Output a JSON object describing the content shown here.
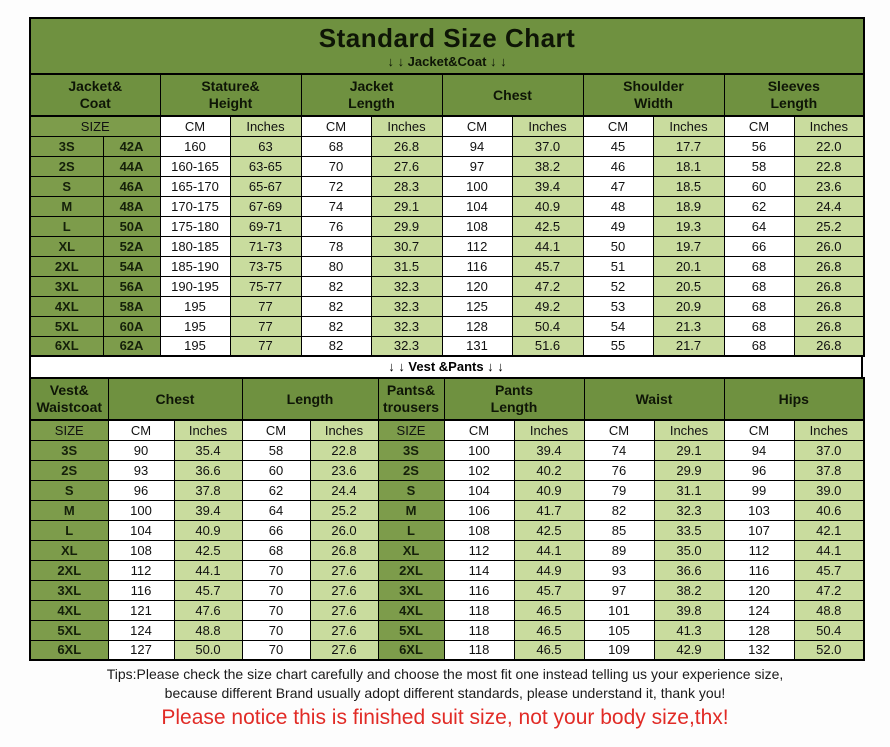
{
  "title": "Standard Size Chart",
  "jacket_section_label": "↓ ↓  Jacket&Coat ↓ ↓",
  "vest_section_label": "↓ ↓  Vest &Pants ↓ ↓",
  "labels": {
    "size": "SIZE",
    "cm": "CM",
    "inches": "Inches"
  },
  "jacket_table": {
    "group_headers": [
      "Jacket&\nCoat",
      "Stature&\nHeight",
      "Jacket\nLength",
      "Chest",
      "Shoulder\nWidth",
      "Sleeves\nLength"
    ],
    "rows": [
      {
        "size": "3S",
        "code": "42A",
        "st_cm": "160",
        "st_in": "63",
        "jl_cm": "68",
        "jl_in": "26.8",
        "ch_cm": "94",
        "ch_in": "37.0",
        "sh_cm": "45",
        "sh_in": "17.7",
        "sl_cm": "56",
        "sl_in": "22.0"
      },
      {
        "size": "2S",
        "code": "44A",
        "st_cm": "160-165",
        "st_in": "63-65",
        "jl_cm": "70",
        "jl_in": "27.6",
        "ch_cm": "97",
        "ch_in": "38.2",
        "sh_cm": "46",
        "sh_in": "18.1",
        "sl_cm": "58",
        "sl_in": "22.8"
      },
      {
        "size": "S",
        "code": "46A",
        "st_cm": "165-170",
        "st_in": "65-67",
        "jl_cm": "72",
        "jl_in": "28.3",
        "ch_cm": "100",
        "ch_in": "39.4",
        "sh_cm": "47",
        "sh_in": "18.5",
        "sl_cm": "60",
        "sl_in": "23.6"
      },
      {
        "size": "M",
        "code": "48A",
        "st_cm": "170-175",
        "st_in": "67-69",
        "jl_cm": "74",
        "jl_in": "29.1",
        "ch_cm": "104",
        "ch_in": "40.9",
        "sh_cm": "48",
        "sh_in": "18.9",
        "sl_cm": "62",
        "sl_in": "24.4"
      },
      {
        "size": "L",
        "code": "50A",
        "st_cm": "175-180",
        "st_in": "69-71",
        "jl_cm": "76",
        "jl_in": "29.9",
        "ch_cm": "108",
        "ch_in": "42.5",
        "sh_cm": "49",
        "sh_in": "19.3",
        "sl_cm": "64",
        "sl_in": "25.2"
      },
      {
        "size": "XL",
        "code": "52A",
        "st_cm": "180-185",
        "st_in": "71-73",
        "jl_cm": "78",
        "jl_in": "30.7",
        "ch_cm": "112",
        "ch_in": "44.1",
        "sh_cm": "50",
        "sh_in": "19.7",
        "sl_cm": "66",
        "sl_in": "26.0"
      },
      {
        "size": "2XL",
        "code": "54A",
        "st_cm": "185-190",
        "st_in": "73-75",
        "jl_cm": "80",
        "jl_in": "31.5",
        "ch_cm": "116",
        "ch_in": "45.7",
        "sh_cm": "51",
        "sh_in": "20.1",
        "sl_cm": "68",
        "sl_in": "26.8"
      },
      {
        "size": "3XL",
        "code": "56A",
        "st_cm": "190-195",
        "st_in": "75-77",
        "jl_cm": "82",
        "jl_in": "32.3",
        "ch_cm": "120",
        "ch_in": "47.2",
        "sh_cm": "52",
        "sh_in": "20.5",
        "sl_cm": "68",
        "sl_in": "26.8"
      },
      {
        "size": "4XL",
        "code": "58A",
        "st_cm": "195",
        "st_in": "77",
        "jl_cm": "82",
        "jl_in": "32.3",
        "ch_cm": "125",
        "ch_in": "49.2",
        "sh_cm": "53",
        "sh_in": "20.9",
        "sl_cm": "68",
        "sl_in": "26.8"
      },
      {
        "size": "5XL",
        "code": "60A",
        "st_cm": "195",
        "st_in": "77",
        "jl_cm": "82",
        "jl_in": "32.3",
        "ch_cm": "128",
        "ch_in": "50.4",
        "sh_cm": "54",
        "sh_in": "21.3",
        "sl_cm": "68",
        "sl_in": "26.8"
      },
      {
        "size": "6XL",
        "code": "62A",
        "st_cm": "195",
        "st_in": "77",
        "jl_cm": "82",
        "jl_in": "32.3",
        "ch_cm": "131",
        "ch_in": "51.6",
        "sh_cm": "55",
        "sh_in": "21.7",
        "sl_cm": "68",
        "sl_in": "26.8"
      }
    ]
  },
  "vest_table": {
    "group_headers": [
      "Vest&\nWaistcoat",
      "Chest",
      "Length",
      "Pants&\ntrousers",
      "Pants\nLength",
      "Waist",
      "Hips"
    ],
    "rows": [
      {
        "size": "3S",
        "ch_cm": "90",
        "ch_in": "35.4",
        "len_cm": "58",
        "len_in": "22.8",
        "psize": "3S",
        "pl_cm": "100",
        "pl_in": "39.4",
        "w_cm": "74",
        "w_in": "29.1",
        "h_cm": "94",
        "h_in": "37.0"
      },
      {
        "size": "2S",
        "ch_cm": "93",
        "ch_in": "36.6",
        "len_cm": "60",
        "len_in": "23.6",
        "psize": "2S",
        "pl_cm": "102",
        "pl_in": "40.2",
        "w_cm": "76",
        "w_in": "29.9",
        "h_cm": "96",
        "h_in": "37.8"
      },
      {
        "size": "S",
        "ch_cm": "96",
        "ch_in": "37.8",
        "len_cm": "62",
        "len_in": "24.4",
        "psize": "S",
        "pl_cm": "104",
        "pl_in": "40.9",
        "w_cm": "79",
        "w_in": "31.1",
        "h_cm": "99",
        "h_in": "39.0"
      },
      {
        "size": "M",
        "ch_cm": "100",
        "ch_in": "39.4",
        "len_cm": "64",
        "len_in": "25.2",
        "psize": "M",
        "pl_cm": "106",
        "pl_in": "41.7",
        "w_cm": "82",
        "w_in": "32.3",
        "h_cm": "103",
        "h_in": "40.6"
      },
      {
        "size": "L",
        "ch_cm": "104",
        "ch_in": "40.9",
        "len_cm": "66",
        "len_in": "26.0",
        "psize": "L",
        "pl_cm": "108",
        "pl_in": "42.5",
        "w_cm": "85",
        "w_in": "33.5",
        "h_cm": "107",
        "h_in": "42.1"
      },
      {
        "size": "XL",
        "ch_cm": "108",
        "ch_in": "42.5",
        "len_cm": "68",
        "len_in": "26.8",
        "psize": "XL",
        "pl_cm": "112",
        "pl_in": "44.1",
        "w_cm": "89",
        "w_in": "35.0",
        "h_cm": "112",
        "h_in": "44.1"
      },
      {
        "size": "2XL",
        "ch_cm": "112",
        "ch_in": "44.1",
        "len_cm": "70",
        "len_in": "27.6",
        "psize": "2XL",
        "pl_cm": "114",
        "pl_in": "44.9",
        "w_cm": "93",
        "w_in": "36.6",
        "h_cm": "116",
        "h_in": "45.7"
      },
      {
        "size": "3XL",
        "ch_cm": "116",
        "ch_in": "45.7",
        "len_cm": "70",
        "len_in": "27.6",
        "psize": "3XL",
        "pl_cm": "116",
        "pl_in": "45.7",
        "w_cm": "97",
        "w_in": "38.2",
        "h_cm": "120",
        "h_in": "47.2"
      },
      {
        "size": "4XL",
        "ch_cm": "121",
        "ch_in": "47.6",
        "len_cm": "70",
        "len_in": "27.6",
        "psize": "4XL",
        "pl_cm": "118",
        "pl_in": "46.5",
        "w_cm": "101",
        "w_in": "39.8",
        "h_cm": "124",
        "h_in": "48.8"
      },
      {
        "size": "5XL",
        "ch_cm": "124",
        "ch_in": "48.8",
        "len_cm": "70",
        "len_in": "27.6",
        "psize": "5XL",
        "pl_cm": "118",
        "pl_in": "46.5",
        "w_cm": "105",
        "w_in": "41.3",
        "h_cm": "128",
        "h_in": "50.4"
      },
      {
        "size": "6XL",
        "ch_cm": "127",
        "ch_in": "50.0",
        "len_cm": "70",
        "len_in": "27.6",
        "psize": "6XL",
        "pl_cm": "118",
        "pl_in": "46.5",
        "w_cm": "109",
        "w_in": "42.9",
        "h_cm": "132",
        "h_in": "52.0"
      }
    ]
  },
  "tips": {
    "line1": "Tips:Please check the size chart carefully and choose the most fit one instead telling us your experience size,",
    "line2": "because different Brand usually adopt different standards, please understand it, thank you!"
  },
  "notice": "Please notice this is finished suit size, not your body size,thx!",
  "colors": {
    "header_green": "#6f9140",
    "size_cell_green": "#7d9c4b",
    "light_green": "#c9dc9e",
    "notice_red": "#e12b26"
  }
}
